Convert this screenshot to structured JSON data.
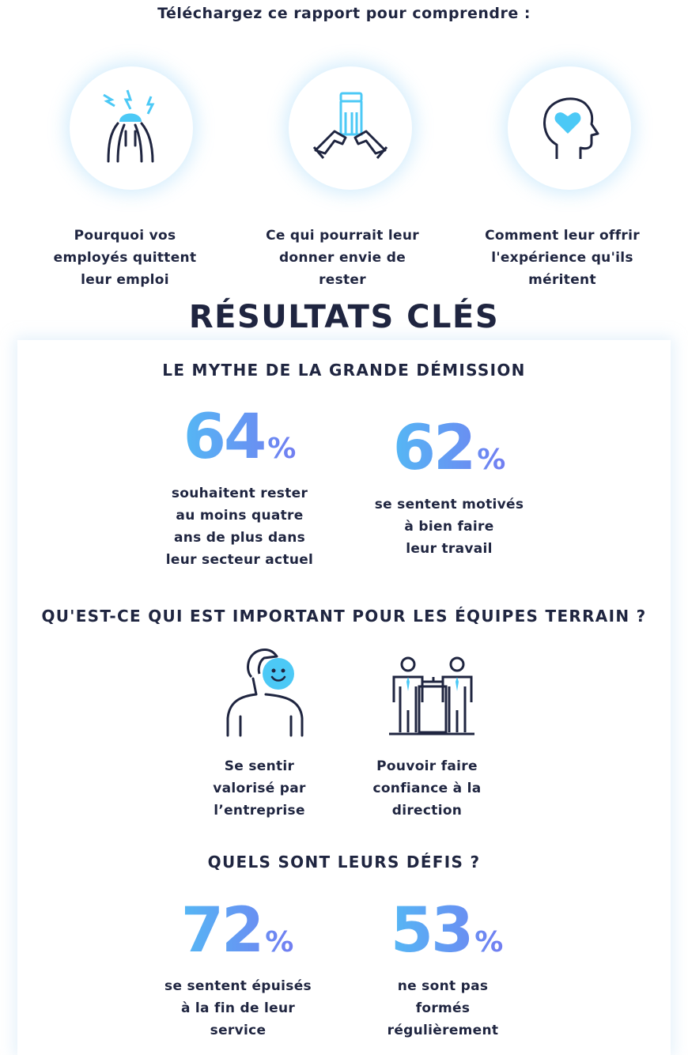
{
  "intro": {
    "title": "Téléchargez ce rapport pour comprendre :",
    "reasons": [
      {
        "icon": "stressed-face-icon",
        "lines": [
          "Pourquoi vos",
          "employés quittent",
          "leur emploi"
        ]
      },
      {
        "icon": "helping-hand-icon",
        "lines": [
          "Ce qui pourrait leur",
          "donner envie de",
          "rester"
        ]
      },
      {
        "icon": "head-heart-icon",
        "lines": [
          "Comment leur offrir",
          "l'expérience qu'ils",
          "méritent"
        ]
      }
    ]
  },
  "results": {
    "title": "RÉSULTATS CLÉS",
    "sections": [
      {
        "title": "LE MYTHE DE LA GRANDE DÉMISSION",
        "stats": [
          {
            "value": "64",
            "unit": "%",
            "lines": [
              "souhaitent rester",
              "au moins quatre",
              "ans de plus dans",
              "leur secteur actuel"
            ]
          },
          {
            "value": "62",
            "unit": "%",
            "lines": [
              "se sentent motivés",
              "à bien faire",
              "leur travail"
            ]
          }
        ]
      },
      {
        "title": "QU'EST-CE QUI EST IMPORTANT POUR LES ÉQUIPES TERRAIN ?",
        "items": [
          {
            "icon": "valued-person-icon",
            "lines": [
              "Se sentir",
              "valorisé par",
              "l’entreprise"
            ]
          },
          {
            "icon": "trust-management-icon",
            "lines": [
              "Pouvoir faire",
              "confiance à la",
              "direction"
            ]
          }
        ]
      },
      {
        "title": "QUELS SONT LEURS DÉFIS ?",
        "stats": [
          {
            "value": "72",
            "unit": "%",
            "lines": [
              "se sentent épuisés",
              "à la fin de leur",
              "service"
            ]
          },
          {
            "value": "53",
            "unit": "%",
            "lines": [
              "ne sont pas",
              "formés",
              "régulièrement"
            ]
          }
        ]
      }
    ]
  },
  "colors": {
    "navy": "#1f2540",
    "accent_blue": "#4cc9f6",
    "accent_purple": "#7b6cf0"
  }
}
